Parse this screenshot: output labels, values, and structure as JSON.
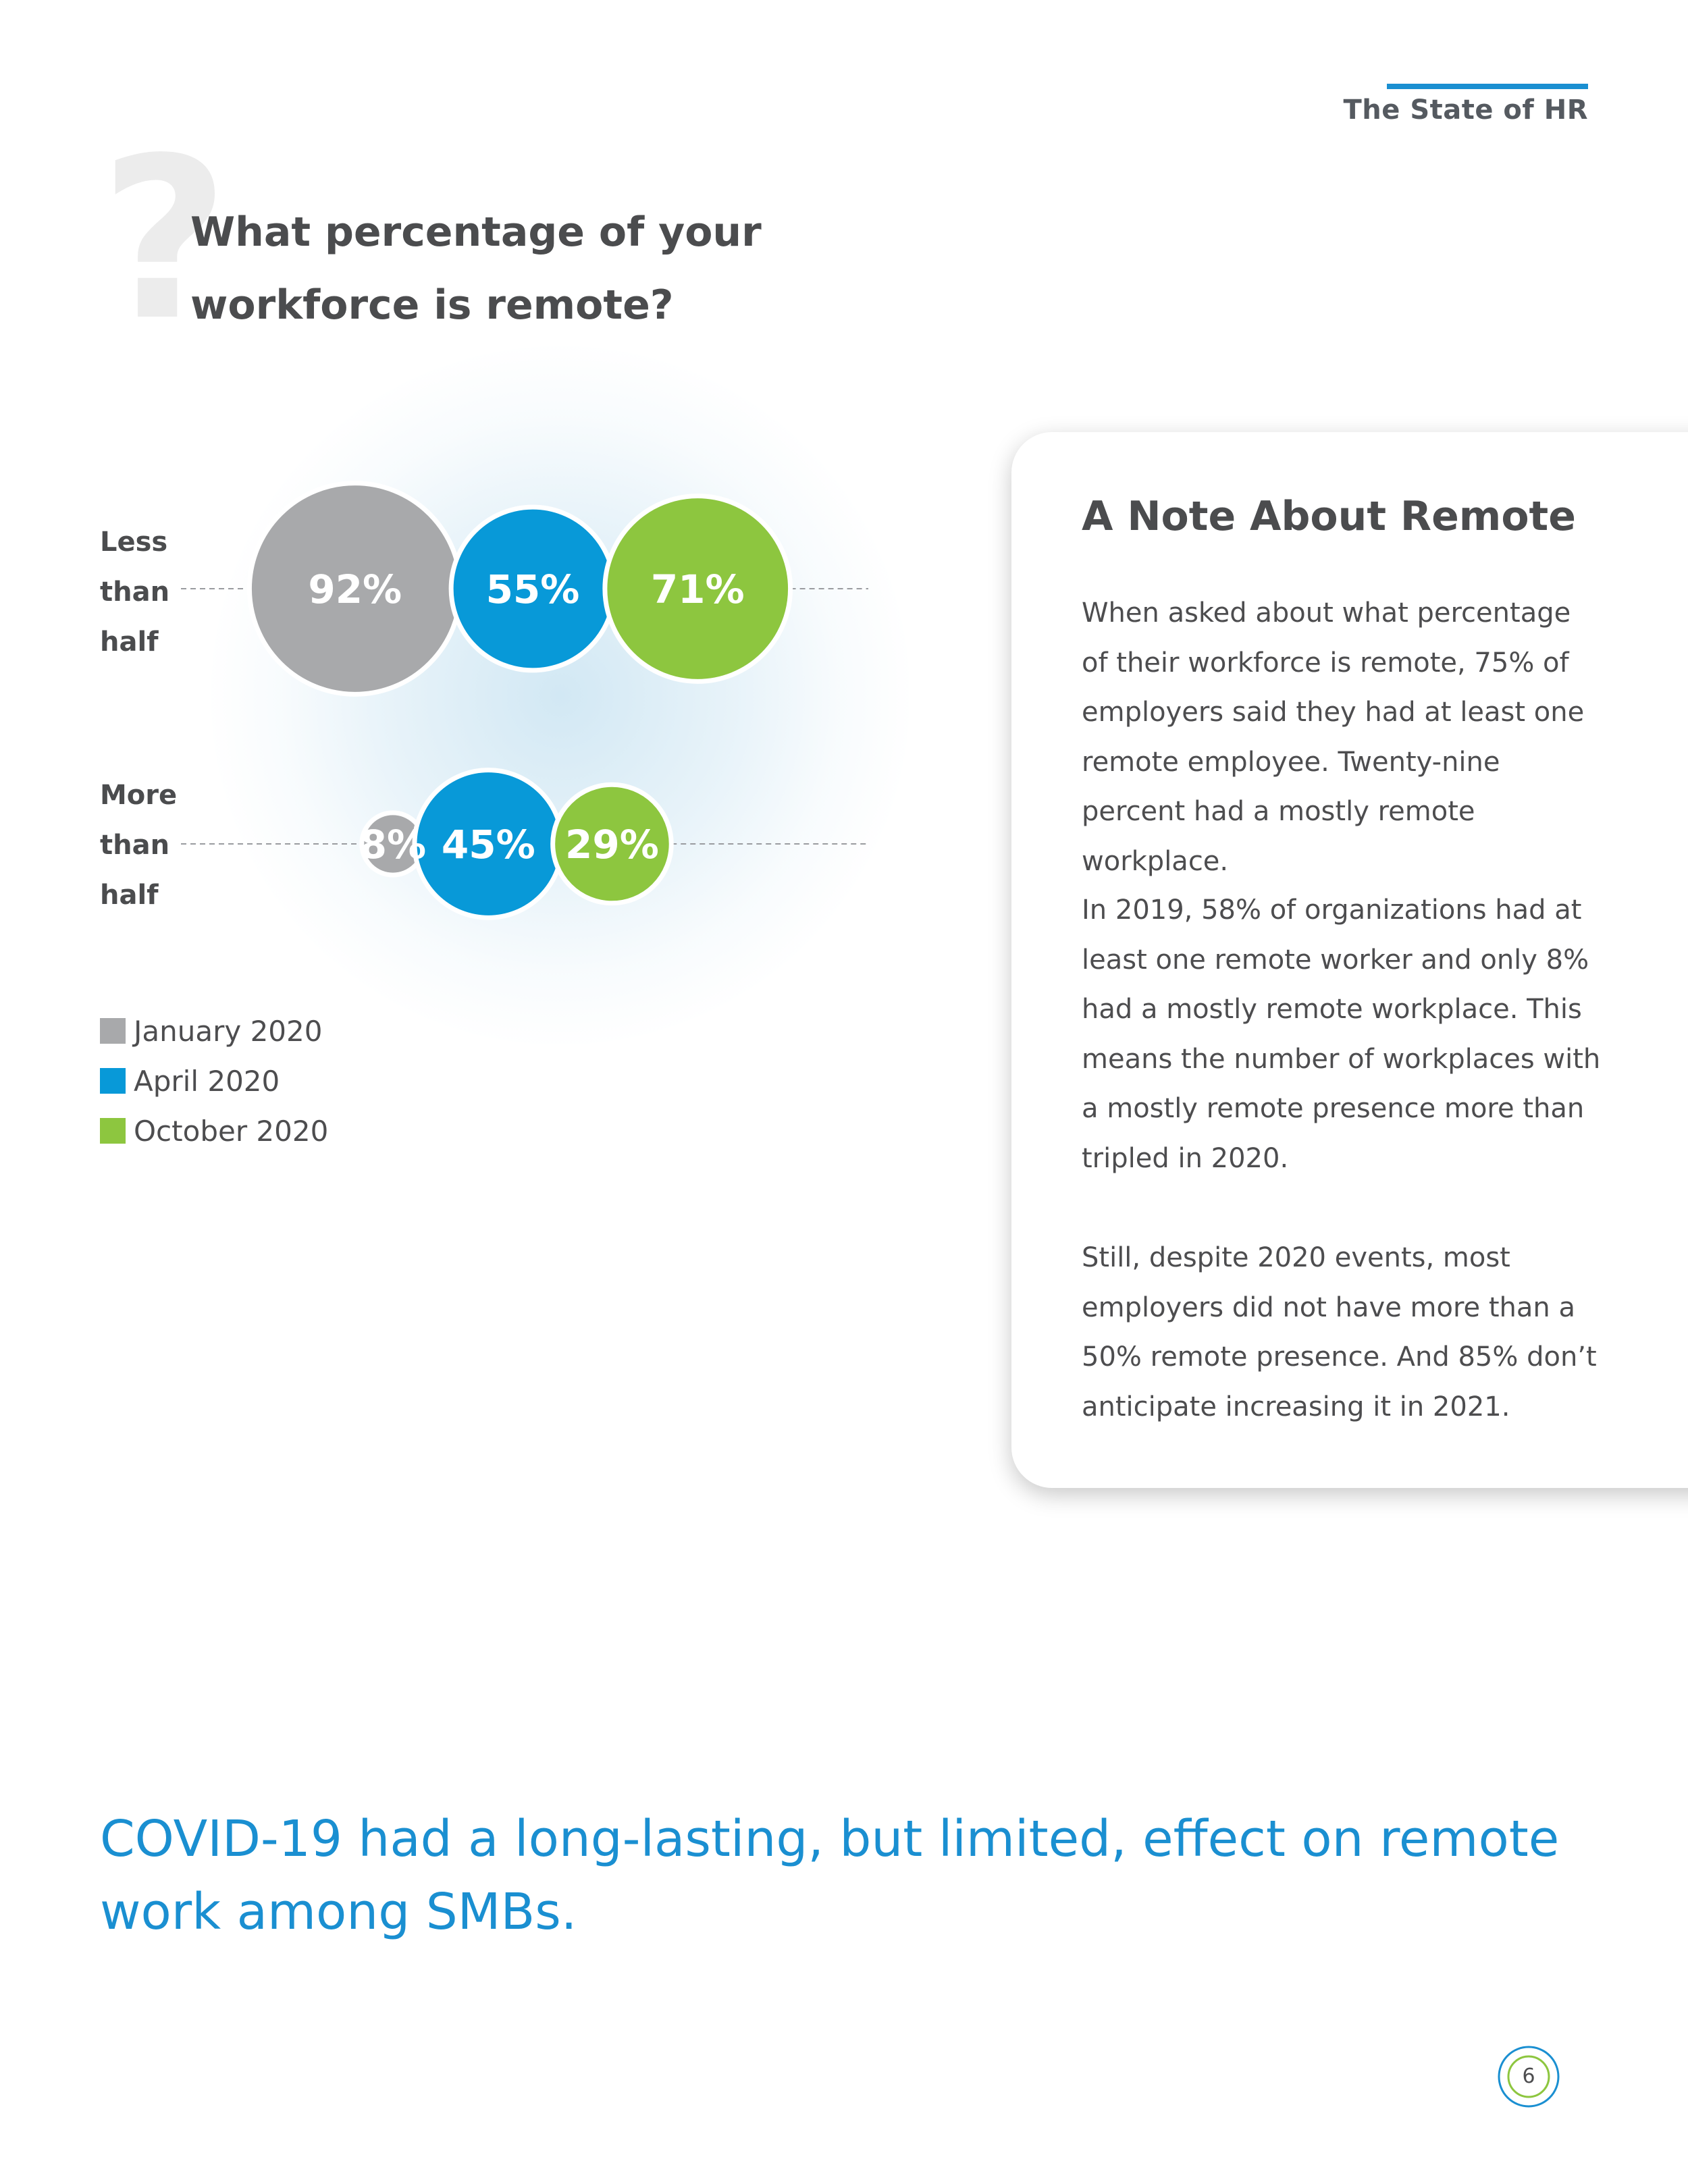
{
  "header": {
    "title": "The State of HR"
  },
  "question": {
    "mark": "?",
    "text": "What percentage of your workforce is remote?"
  },
  "chart_data": {
    "type": "bubble",
    "title": "What percentage of your workforce is remote?",
    "categories": [
      "Less than half",
      "More than half"
    ],
    "category_label_lines": [
      [
        "Less",
        "than",
        "half"
      ],
      [
        "More",
        "than",
        "half"
      ]
    ],
    "series": [
      {
        "name": "January 2020",
        "color": "#a8a9ab",
        "values": [
          92,
          8
        ]
      },
      {
        "name": "April 2020",
        "color": "#0899d8",
        "values": [
          55,
          45
        ]
      },
      {
        "name": "October 2020",
        "color": "#8dc63f",
        "values": [
          71,
          29
        ]
      }
    ],
    "value_suffix": "%",
    "legend_position": "bottom-left"
  },
  "note": {
    "title": "A Note About Remote",
    "paragraphs": [
      "When asked about what percentage of their workforce is remote, 75% of employers said they had at least one remote employee. Twenty-nine percent had a mostly remote workplace.",
      "In 2019, 58% of organizations had at least one remote worker and only 8% had a mostly remote workplace. This means the number of workplaces with a mostly remote presence more than tripled in 2020.",
      "Still, despite 2020 events, most employers did not have more than a 50% remote presence. And 85% don’t anticipate increasing it in 2021."
    ]
  },
  "takeaway": "COVID-19 had a long-lasting, but limited, effect on remote work among SMBs.",
  "page_number": "6",
  "colors": {
    "accent": "#1a8fd1",
    "gray": "#a8a9ab",
    "blue": "#0899d8",
    "green": "#8dc63f"
  }
}
